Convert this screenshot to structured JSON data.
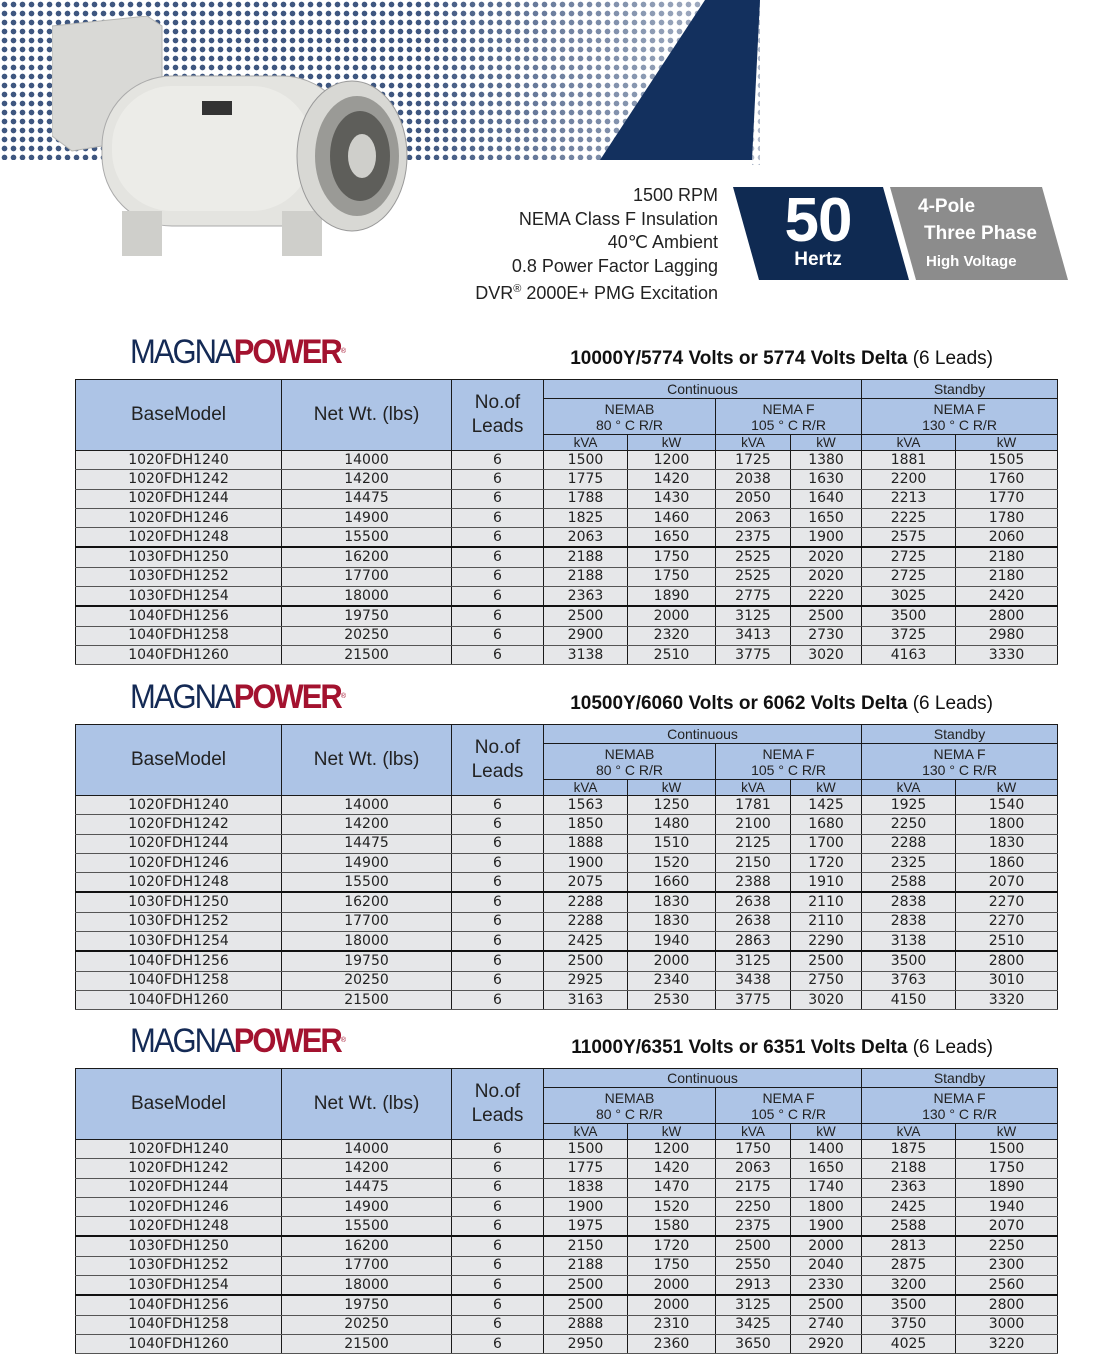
{
  "header": {
    "specs": [
      "1500 RPM",
      "NEMA Class F Insulation",
      "40℃ Ambient",
      "0.8 Power Factor Lagging"
    ],
    "excitation": {
      "prefix": "DVR",
      "reg": "®",
      "suffix": " 2000E+ PMG Excitation"
    },
    "frequency": {
      "value": "50",
      "unit": "Hertz"
    },
    "config": [
      "4-Pole",
      "Three Phase",
      "High Voltage"
    ],
    "colors": {
      "navy": "#0f2a52",
      "gray": "#8c8c8c",
      "header_blue": "#adc4e6",
      "brand_red": "#a3122f"
    }
  },
  "brand": {
    "part1": "MAGNA",
    "part2": "POWER",
    "reg": "®"
  },
  "columns": {
    "base_model": "BaseModel",
    "net_wt": "Net Wt. (lbs)",
    "leads": "No.of Leads",
    "continuous": "Continuous",
    "standby": "Standby",
    "nema_b": "NEMAB",
    "nema_b_temp": "80 ° C R/R",
    "nema_f": "NEMA F",
    "nema_f_temp": "105 ° C R/R",
    "nema_f_sb": "NEMA F",
    "nema_f_sb_temp": "130 ° C R/R",
    "kva": "kVA",
    "kw": "kW"
  },
  "tables": [
    {
      "title_bold": "10000Y/5774 Volts or 5774 Volts Delta",
      "title_rest": " (6 Leads)",
      "rows": [
        [
          "1020FDH1240",
          "14000",
          "6",
          "1500",
          "1200",
          "1725",
          "1380",
          "1881",
          "1505"
        ],
        [
          "1020FDH1242",
          "14200",
          "6",
          "1775",
          "1420",
          "2038",
          "1630",
          "2200",
          "1760"
        ],
        [
          "1020FDH1244",
          "14475",
          "6",
          "1788",
          "1430",
          "2050",
          "1640",
          "2213",
          "1770"
        ],
        [
          "1020FDH1246",
          "14900",
          "6",
          "1825",
          "1460",
          "2063",
          "1650",
          "2225",
          "1780"
        ],
        [
          "1020FDH1248",
          "15500",
          "6",
          "2063",
          "1650",
          "2375",
          "1900",
          "2575",
          "2060"
        ],
        [
          "1030FDH1250",
          "16200",
          "6",
          "2188",
          "1750",
          "2525",
          "2020",
          "2725",
          "2180"
        ],
        [
          "1030FDH1252",
          "17700",
          "6",
          "2188",
          "1750",
          "2525",
          "2020",
          "2725",
          "2180"
        ],
        [
          "1030FDH1254",
          "18000",
          "6",
          "2363",
          "1890",
          "2775",
          "2220",
          "3025",
          "2420"
        ],
        [
          "1040FDH1256",
          "19750",
          "6",
          "2500",
          "2000",
          "3125",
          "2500",
          "3500",
          "2800"
        ],
        [
          "1040FDH1258",
          "20250",
          "6",
          "2900",
          "2320",
          "3413",
          "2730",
          "3725",
          "2980"
        ],
        [
          "1040FDH1260",
          "21500",
          "6",
          "3138",
          "2510",
          "3775",
          "3020",
          "4163",
          "3330"
        ]
      ]
    },
    {
      "title_bold": "10500Y/6060  Volts or 6062 Volts Delta",
      "title_rest": " (6 Leads)",
      "rows": [
        [
          "1020FDH1240",
          "14000",
          "6",
          "1563",
          "1250",
          "1781",
          "1425",
          "1925",
          "1540"
        ],
        [
          "1020FDH1242",
          "14200",
          "6",
          "1850",
          "1480",
          "2100",
          "1680",
          "2250",
          "1800"
        ],
        [
          "1020FDH1244",
          "14475",
          "6",
          "1888",
          "1510",
          "2125",
          "1700",
          "2288",
          "1830"
        ],
        [
          "1020FDH1246",
          "14900",
          "6",
          "1900",
          "1520",
          "2150",
          "1720",
          "2325",
          "1860"
        ],
        [
          "1020FDH1248",
          "15500",
          "6",
          "2075",
          "1660",
          "2388",
          "1910",
          "2588",
          "2070"
        ],
        [
          "1030FDH1250",
          "16200",
          "6",
          "2288",
          "1830",
          "2638",
          "2110",
          "2838",
          "2270"
        ],
        [
          "1030FDH1252",
          "17700",
          "6",
          "2288",
          "1830",
          "2638",
          "2110",
          "2838",
          "2270"
        ],
        [
          "1030FDH1254",
          "18000",
          "6",
          "2425",
          "1940",
          "2863",
          "2290",
          "3138",
          "2510"
        ],
        [
          "1040FDH1256",
          "19750",
          "6",
          "2500",
          "2000",
          "3125",
          "2500",
          "3500",
          "2800"
        ],
        [
          "1040FDH1258",
          "20250",
          "6",
          "2925",
          "2340",
          "3438",
          "2750",
          "3763",
          "3010"
        ],
        [
          "1040FDH1260",
          "21500",
          "6",
          "3163",
          "2530",
          "3775",
          "3020",
          "4150",
          "3320"
        ]
      ]
    },
    {
      "title_bold": "11000Y/6351  Volts or 6351 Volts Delta",
      "title_rest": " (6 Leads)",
      "rows": [
        [
          "1020FDH1240",
          "14000",
          "6",
          "1500",
          "1200",
          "1750",
          "1400",
          "1875",
          "1500"
        ],
        [
          "1020FDH1242",
          "14200",
          "6",
          "1775",
          "1420",
          "2063",
          "1650",
          "2188",
          "1750"
        ],
        [
          "1020FDH1244",
          "14475",
          "6",
          "1838",
          "1470",
          "2175",
          "1740",
          "2363",
          "1890"
        ],
        [
          "1020FDH1246",
          "14900",
          "6",
          "1900",
          "1520",
          "2250",
          "1800",
          "2425",
          "1940"
        ],
        [
          "1020FDH1248",
          "15500",
          "6",
          "1975",
          "1580",
          "2375",
          "1900",
          "2588",
          "2070"
        ],
        [
          "1030FDH1250",
          "16200",
          "6",
          "2150",
          "1720",
          "2500",
          "2000",
          "2813",
          "2250"
        ],
        [
          "1030FDH1252",
          "17700",
          "6",
          "2188",
          "1750",
          "2550",
          "2040",
          "2875",
          "2300"
        ],
        [
          "1030FDH1254",
          "18000",
          "6",
          "2500",
          "2000",
          "2913",
          "2330",
          "3200",
          "2560"
        ],
        [
          "1040FDH1256",
          "19750",
          "6",
          "2500",
          "2000",
          "3125",
          "2500",
          "3500",
          "2800"
        ],
        [
          "1040FDH1258",
          "20250",
          "6",
          "2888",
          "2310",
          "3425",
          "2740",
          "3750",
          "3000"
        ],
        [
          "1040FDH1260",
          "21500",
          "6",
          "2950",
          "2360",
          "3650",
          "2920",
          "4025",
          "3220"
        ]
      ]
    }
  ]
}
